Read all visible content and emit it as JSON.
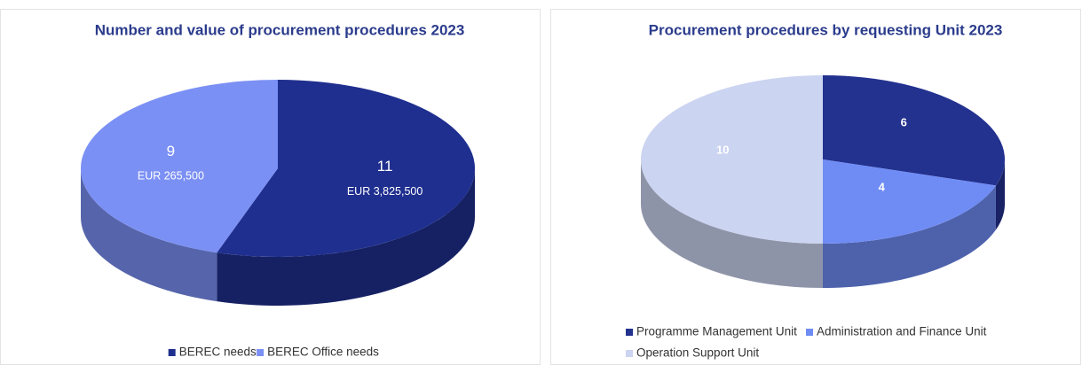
{
  "chart_data": [
    {
      "type": "pie3d",
      "title": "Number and value of procurement procedures 2023",
      "categories": [
        "BEREC needs",
        "BEREC Office needs"
      ],
      "values": [
        11,
        9
      ],
      "colors": [
        "#1f2f8f",
        "#7b90f4"
      ],
      "annotations": [
        "EUR 3,825,500",
        "EUR 265,500"
      ],
      "legend": "bottom"
    },
    {
      "type": "pie3d",
      "title": "Procurement procedures by requesting Unit 2023",
      "categories": [
        "Programme Management Unit",
        "Administration and Finance Unit",
        "Operation Support Unit"
      ],
      "values": [
        6,
        4,
        10
      ],
      "colors": [
        "#23318f",
        "#6f8cf5",
        "#cbd4f0"
      ],
      "legend": "bottom"
    }
  ]
}
